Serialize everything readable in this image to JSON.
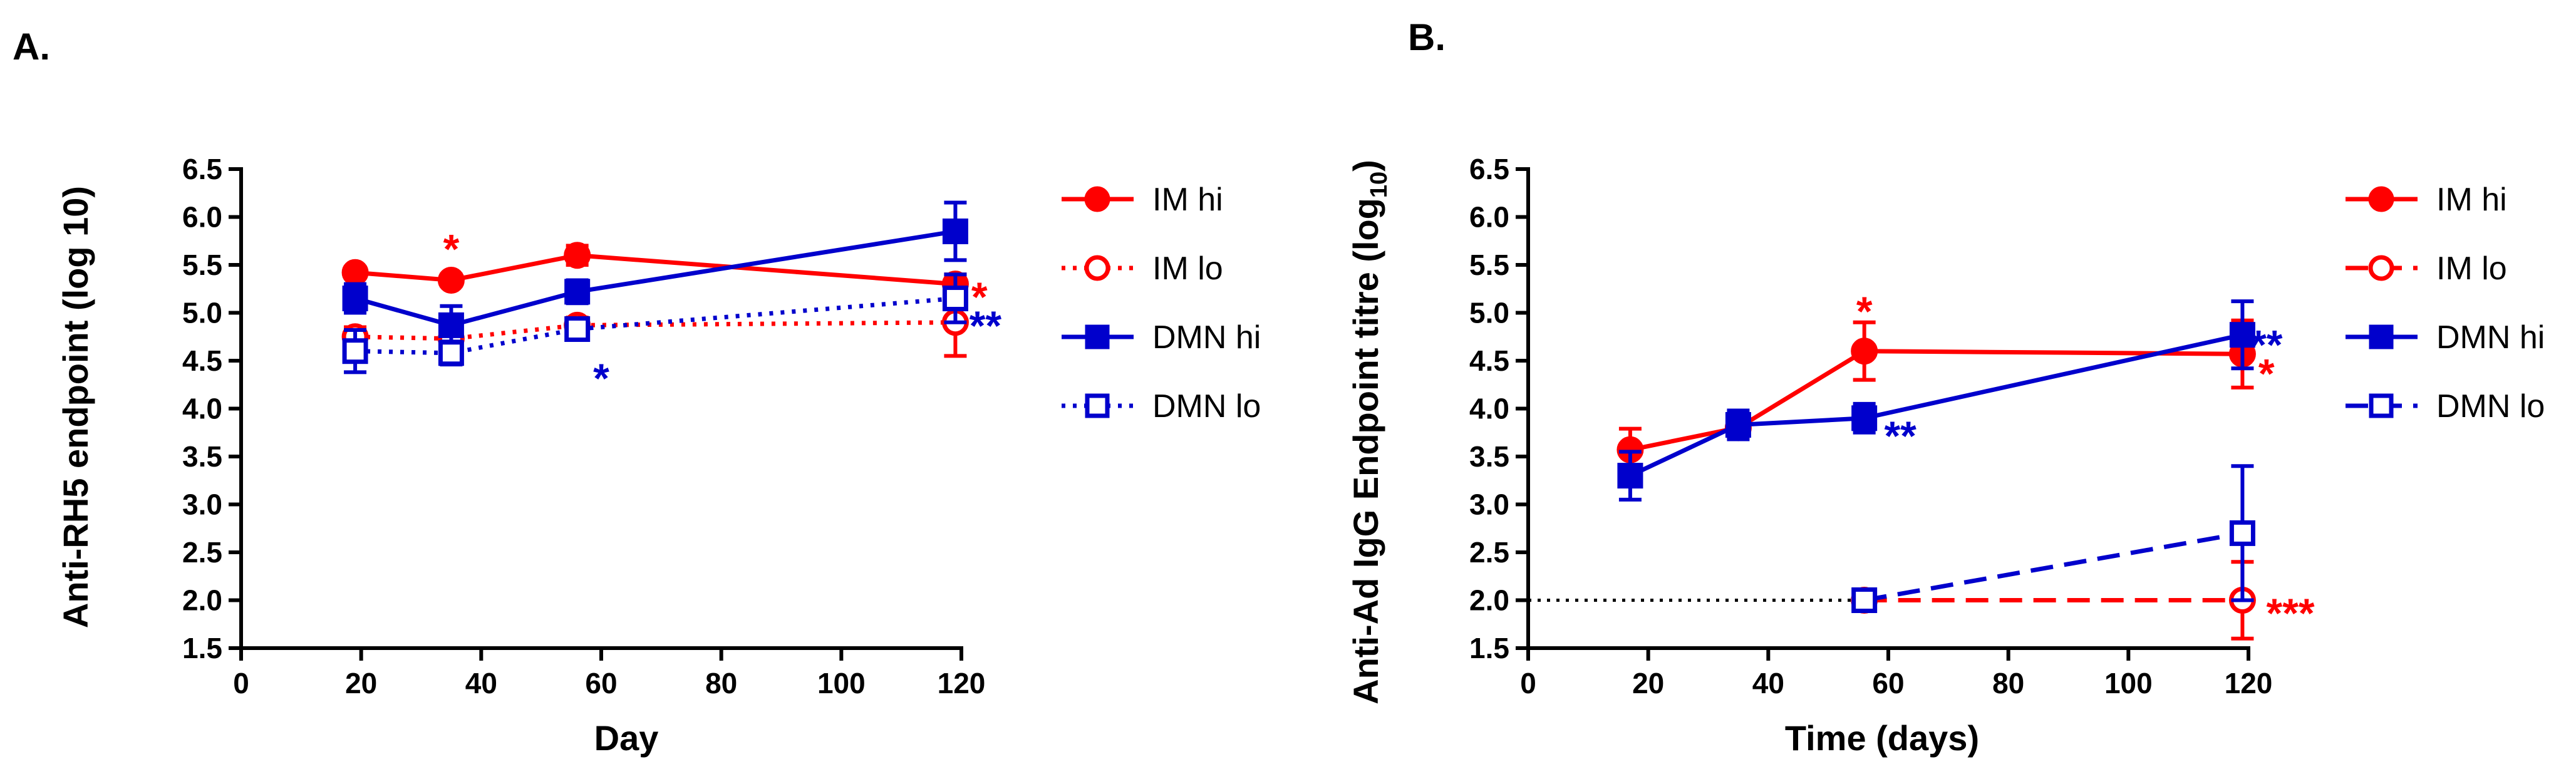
{
  "chart_data": [
    {
      "panel": "A.",
      "type": "line",
      "xlabel": "Day",
      "ylabel": "Anti-RH5 endpoint (log 10)",
      "xlim": [
        0,
        120
      ],
      "ylim": [
        1.5,
        6.5
      ],
      "xticks": [
        0,
        20,
        40,
        60,
        80,
        100,
        120
      ],
      "yticks": [
        1.5,
        2.0,
        2.5,
        3.0,
        3.5,
        4.0,
        4.5,
        5.0,
        5.5,
        6.0,
        6.5
      ],
      "series": [
        {
          "name": "IM hi",
          "color": "#ff0000",
          "marker": "circle",
          "filled": true,
          "dash": "solid",
          "x": [
            19,
            35,
            56,
            119
          ],
          "y": [
            5.42,
            5.34,
            5.6,
            5.3
          ],
          "err": [
            0.05,
            0.06,
            0.1,
            0.1
          ]
        },
        {
          "name": "IM lo",
          "color": "#ff0000",
          "marker": "circle",
          "filled": false,
          "dash": "dotted",
          "x": [
            19,
            35,
            56,
            119
          ],
          "y": [
            4.75,
            4.73,
            4.87,
            4.9
          ],
          "err": [
            0.1,
            0.15,
            0.08,
            0.35
          ]
        },
        {
          "name": "DMN hi",
          "color": "#0000cc",
          "marker": "square",
          "filled": true,
          "dash": "solid",
          "x": [
            19,
            35,
            56,
            119
          ],
          "y": [
            5.15,
            4.87,
            5.22,
            5.85
          ],
          "err": [
            0.15,
            0.2,
            0.12,
            0.3
          ]
        },
        {
          "name": "DMN lo",
          "color": "#0000cc",
          "marker": "square",
          "filled": false,
          "dash": "dotted",
          "x": [
            19,
            35,
            56,
            119
          ],
          "y": [
            4.6,
            4.58,
            4.83,
            5.15
          ],
          "err": [
            0.22,
            0.12,
            0.07,
            0.25
          ]
        }
      ],
      "annotations": [
        {
          "text": "*",
          "color": "#ff0000",
          "x": 35,
          "y": 5.7
        },
        {
          "text": "*",
          "color": "#0000cc",
          "x": 60,
          "y": 4.35
        },
        {
          "text": "*",
          "color": "#ff0000",
          "x": 123,
          "y": 5.2
        },
        {
          "text": "**",
          "color": "#0000cc",
          "x": 124,
          "y": 4.9
        }
      ]
    },
    {
      "panel": "B.",
      "type": "line",
      "xlabel": "Time (days)",
      "ylabel_main": "Anti-Ad IgG Endpoint titre (log",
      "ylabel_sub": "10",
      "ylabel_end": ")",
      "xlim": [
        0,
        120
      ],
      "ylim": [
        1.5,
        6.5
      ],
      "xticks": [
        0,
        20,
        40,
        60,
        80,
        100,
        120
      ],
      "yticks": [
        1.5,
        2.0,
        2.5,
        3.0,
        3.5,
        4.0,
        4.5,
        5.0,
        5.5,
        6.0,
        6.5
      ],
      "reference_line": {
        "y": 2.0,
        "x_start": 0,
        "x_end": 56,
        "color": "#000000",
        "style": "dotted"
      },
      "series": [
        {
          "name": "IM hi",
          "color": "#ff0000",
          "marker": "circle",
          "filled": true,
          "dash": "solid",
          "x": [
            17,
            35,
            56,
            119
          ],
          "y": [
            3.57,
            3.8,
            4.6,
            4.57
          ],
          "err": [
            0.22,
            0.1,
            0.3,
            0.35
          ]
        },
        {
          "name": "IM lo",
          "color": "#ff0000",
          "marker": "circle",
          "filled": false,
          "dash": "dashed",
          "x": [
            56,
            119
          ],
          "y": [
            2.0,
            2.0
          ],
          "err": [
            0.0,
            0.4
          ]
        },
        {
          "name": "DMN hi",
          "color": "#0000cc",
          "marker": "square",
          "filled": true,
          "dash": "solid",
          "x": [
            17,
            35,
            56,
            119
          ],
          "y": [
            3.3,
            3.83,
            3.9,
            4.77
          ],
          "err": [
            0.25,
            0.15,
            0.15,
            0.35
          ]
        },
        {
          "name": "DMN lo",
          "color": "#0000cc",
          "marker": "square",
          "filled": false,
          "dash": "dashed",
          "x": [
            56,
            119
          ],
          "y": [
            2.0,
            2.7
          ],
          "err": [
            0.0,
            0.7
          ]
        }
      ],
      "annotations": [
        {
          "text": "*",
          "color": "#ff0000",
          "x": 56,
          "y": 5.05
        },
        {
          "text": "**",
          "color": "#0000cc",
          "x": 62,
          "y": 3.75
        },
        {
          "text": "**",
          "color": "#0000cc",
          "x": 123,
          "y": 4.7
        },
        {
          "text": "*",
          "color": "#ff0000",
          "x": 123,
          "y": 4.4
        },
        {
          "text": "***",
          "color": "#ff0000",
          "x": 127,
          "y": 1.9
        }
      ]
    }
  ]
}
